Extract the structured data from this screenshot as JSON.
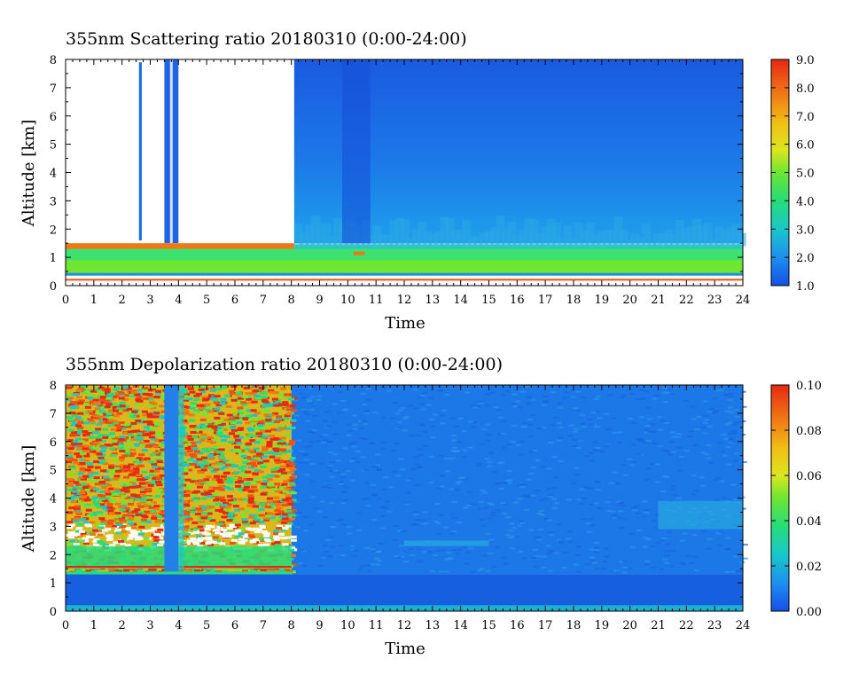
{
  "chart_data": [
    {
      "type": "heatmap",
      "title": "355nm Scattering ratio  20180310 (0:00-24:00)",
      "xlabel": "Time",
      "ylabel": "Altitude [km]",
      "xlim": [
        0,
        24
      ],
      "ylim": [
        0,
        8
      ],
      "x_ticks": [
        "0",
        "1",
        "2",
        "3",
        "4",
        "5",
        "6",
        "7",
        "8",
        "9",
        "10",
        "11",
        "12",
        "13",
        "14",
        "15",
        "16",
        "17",
        "18",
        "19",
        "20",
        "21",
        "22",
        "23",
        "24"
      ],
      "y_ticks": [
        "0",
        "1",
        "2",
        "3",
        "4",
        "5",
        "6",
        "7",
        "8"
      ],
      "colorbar": {
        "range": [
          1.0,
          9.0
        ],
        "labels": [
          "1.0",
          "2.0",
          "3.0",
          "4.0",
          "5.0",
          "6.0",
          "7.0",
          "8.0",
          "9.0"
        ]
      },
      "features": [
        {
          "desc": "no data / white above cloud",
          "t": [
            0,
            8.1
          ],
          "alt": [
            1.5,
            8
          ]
        },
        {
          "desc": "thin cloud column",
          "t": [
            2.6,
            2.7
          ],
          "alt": [
            1.6,
            8
          ],
          "value": 2.0
        },
        {
          "desc": "cloud column",
          "t": [
            3.5,
            4.0
          ],
          "alt": [
            1.5,
            8
          ],
          "value": 2.0
        },
        {
          "desc": "boundary layer",
          "t": [
            0,
            24
          ],
          "alt": [
            0.4,
            1.3
          ],
          "value": 4.2
        },
        {
          "desc": "free troposphere",
          "t": [
            8.1,
            24
          ],
          "alt": [
            1.5,
            8
          ],
          "value": 2.0
        }
      ]
    },
    {
      "type": "heatmap",
      "title": "355nm Depolarization ratio  20180310 (0:00-24:00)",
      "xlabel": "Time",
      "ylabel": "Altitude [km]",
      "xlim": [
        0,
        24
      ],
      "ylim": [
        0,
        8
      ],
      "x_ticks": [
        "0",
        "1",
        "2",
        "3",
        "4",
        "5",
        "6",
        "7",
        "8",
        "9",
        "10",
        "11",
        "12",
        "13",
        "14",
        "15",
        "16",
        "17",
        "18",
        "19",
        "20",
        "21",
        "22",
        "23",
        "24"
      ],
      "y_ticks": [
        "0",
        "1",
        "2",
        "3",
        "4",
        "5",
        "6",
        "7",
        "8"
      ],
      "colorbar": {
        "range": [
          0.0,
          0.1
        ],
        "labels": [
          "0.00",
          "0.02",
          "0.04",
          "0.06",
          "0.08",
          "0.10"
        ]
      },
      "features": [
        {
          "desc": "noisy high depolarization",
          "t": [
            0,
            8
          ],
          "alt": [
            1.3,
            8
          ],
          "value": 0.09
        },
        {
          "desc": "low depolarization column",
          "t": [
            3.5,
            4.0
          ],
          "alt": [
            1.3,
            8
          ],
          "value": 0.015
        },
        {
          "desc": "boundary layer",
          "t": [
            0,
            24
          ],
          "alt": [
            0.2,
            1.3
          ],
          "value": 0.01
        },
        {
          "desc": "free troposphere",
          "t": [
            8,
            24
          ],
          "alt": [
            1.3,
            8
          ],
          "value": 0.018
        }
      ]
    }
  ]
}
